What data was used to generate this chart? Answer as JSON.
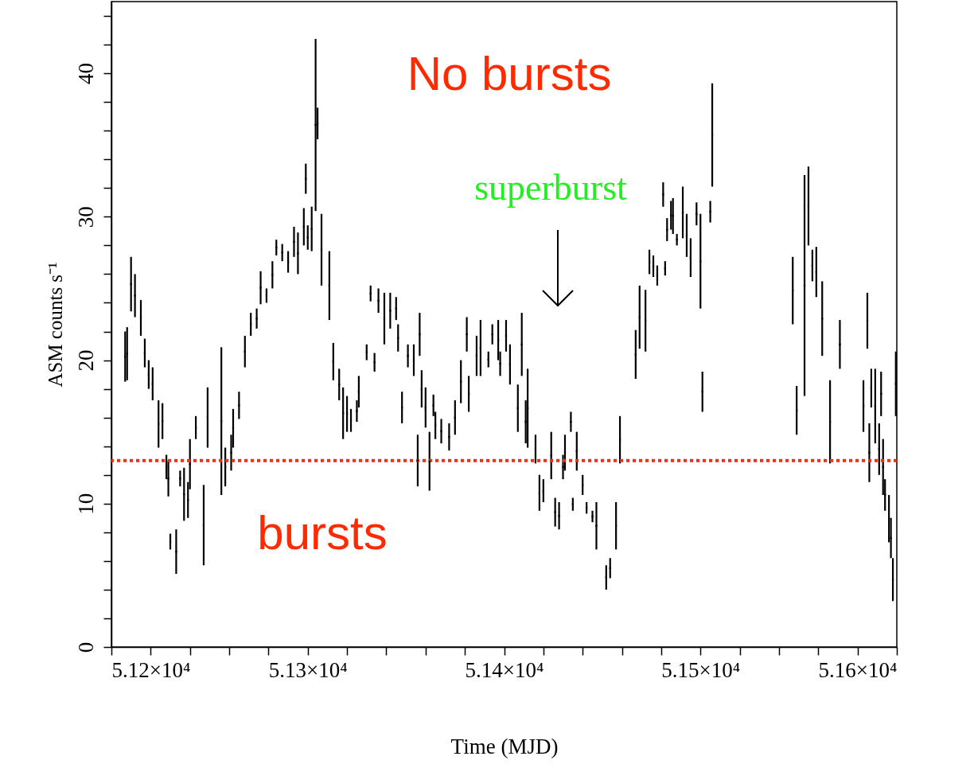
{
  "chart_data": {
    "type": "scatter",
    "xlabel": "Time (MJD)",
    "ylabel": "ASM counts s⁻¹",
    "grid": false,
    "xlim": [
      51200,
      51600
    ],
    "ylim": [
      0,
      45
    ],
    "xticks": [
      {
        "value": 51200,
        "label": "5.12×10⁴"
      },
      {
        "value": 51220,
        "label": null
      },
      {
        "value": 51240,
        "label": null
      },
      {
        "value": 51260,
        "label": null
      },
      {
        "value": 51280,
        "label": null
      },
      {
        "value": 51300,
        "label": "5.13×10⁴"
      },
      {
        "value": 51320,
        "label": null
      },
      {
        "value": 51340,
        "label": null
      },
      {
        "value": 51360,
        "label": null
      },
      {
        "value": 51380,
        "label": null
      },
      {
        "value": 51400,
        "label": "5.14×10⁴"
      },
      {
        "value": 51420,
        "label": null
      },
      {
        "value": 51440,
        "label": null
      },
      {
        "value": 51460,
        "label": null
      },
      {
        "value": 51480,
        "label": null
      },
      {
        "value": 51500,
        "label": "5.15×10⁴"
      },
      {
        "value": 51520,
        "label": null
      },
      {
        "value": 51540,
        "label": null
      },
      {
        "value": 51560,
        "label": null
      },
      {
        "value": 51580,
        "label": null
      },
      {
        "value": 51600,
        "label": "5.16×10⁴"
      }
    ],
    "yticks": [
      0,
      {
        "value": 2,
        "label": null
      },
      {
        "value": 4,
        "label": null
      },
      {
        "value": 6,
        "label": null
      },
      {
        "value": 8,
        "label": null
      },
      10,
      {
        "value": 12,
        "label": null
      },
      {
        "value": 14,
        "label": null
      },
      {
        "value": 16,
        "label": null
      },
      {
        "value": 18,
        "label": null
      },
      20,
      {
        "value": 22,
        "label": null
      },
      {
        "value": 24,
        "label": null
      },
      {
        "value": 26,
        "label": null
      },
      {
        "value": 28,
        "label": null
      },
      30,
      {
        "value": 32,
        "label": null
      },
      {
        "value": 34,
        "label": null
      },
      {
        "value": 36,
        "label": null
      },
      {
        "value": 38,
        "label": null
      },
      40,
      {
        "value": 42,
        "label": null
      },
      {
        "value": 44,
        "label": null
      }
    ],
    "ref_lines": [
      {
        "axis": "y",
        "value": 13,
        "color": "#ff2a00",
        "line_style": "dotted"
      }
    ],
    "annotations": [
      "No bursts",
      "bursts",
      "superburst"
    ],
    "series": [
      {
        "color": "#000000",
        "x": [
          51207,
          51208,
          51210,
          51212,
          51215,
          51217,
          51219,
          51221,
          51224,
          51226,
          51228,
          51229,
          51230,
          51233,
          51235,
          51237,
          51239,
          51240,
          51243,
          51247,
          51249,
          51256,
          51258,
          51261,
          51262,
          51265,
          51268,
          51271,
          51274,
          51276,
          51279,
          51282,
          51284,
          51287,
          51290,
          51293,
          51295,
          51298,
          51299,
          51300,
          51302,
          51304,
          51305,
          51307,
          51311,
          51313,
          51316,
          51318,
          51320,
          51322,
          51325,
          51326,
          51330,
          51332,
          51334,
          51336,
          51339,
          51342,
          51345,
          51346,
          51348,
          51351,
          51354,
          51356,
          51357,
          51358,
          51360,
          51362,
          51364,
          51365,
          51368,
          51372,
          51375,
          51378,
          51381,
          51382,
          51386,
          51388,
          51392,
          51394,
          51397,
          51398,
          51401,
          51403,
          51407,
          51409,
          51411,
          51412,
          51416,
          51418,
          51420,
          51424,
          51426,
          51428,
          51430,
          51431,
          51434,
          51435,
          51437,
          51440,
          51442,
          51445,
          51447,
          51452,
          51454,
          51457,
          51459,
          51467,
          51469,
          51472,
          51474,
          51476,
          51478,
          51481,
          51482,
          51483,
          51485,
          51486,
          51488,
          51491,
          51493,
          51495,
          51498,
          51500,
          51501,
          51505,
          51506,
          51547,
          51549,
          51553,
          51555,
          51557,
          51559,
          51562,
          51566,
          51571,
          51583,
          51585,
          51586,
          51587,
          51589,
          51591,
          51592,
          51593,
          51594,
          51596,
          51597,
          51598,
          51599.5
        ],
        "values": [
          20.25,
          20.45,
          25.3,
          24.5,
          22.95,
          20.5,
          19,
          18.35,
          15.55,
          15.75,
          12.55,
          11.75,
          7.35,
          6.65,
          11.75,
          10.65,
          10.25,
          12.75,
          15.3,
          8.5,
          16,
          15.75,
          12.55,
          13.55,
          15.25,
          16.85,
          20.6,
          22.5,
          22.9,
          25.05,
          24.5,
          25.95,
          27.85,
          27.5,
          26.85,
          28.25,
          27.45,
          29.3,
          32.65,
          28.55,
          29.15,
          36.4,
          36.5,
          27.7,
          25.2,
          19.9,
          18.3,
          16.3,
          16.25,
          15.8,
          16.45,
          17.8,
          20.55,
          24.65,
          19.85,
          24.15,
          22.9,
          23.45,
          23.6,
          21.55,
          16.7,
          20.3,
          20,
          13,
          21.8,
          18,
          16.7,
          12.95,
          16.85,
          15.45,
          15.05,
          14.65,
          16,
          18.5,
          21.8,
          17.65,
          20.3,
          20.85,
          20.05,
          21.8,
          21.4,
          19.75,
          21.7,
          19.7,
          16.65,
          21.1,
          15.7,
          16.65,
          13.8,
          10.75,
          10.9,
          13.35,
          9.4,
          9.15,
          12.55,
          13.55,
          15.7,
          9.95,
          13.65,
          11.3,
          9.7,
          9.1,
          8.45,
          4.85,
          5.5,
          8.45,
          14.45,
          20.4,
          23,
          22.75,
          26.85,
          26.55,
          25.9,
          31.55,
          26.4,
          29.1,
          30.1,
          30.05,
          28.4,
          30.3,
          28.7,
          27.15,
          30.2,
          26.9,
          17.8,
          30.35,
          35.7,
          24.85,
          16.5,
          25.2,
          30.75,
          26.6,
          26.15,
          22.9,
          15.7,
          21.1,
          16.8,
          22.75,
          13.55,
          18.05,
          16.8,
          13.8,
          17.65,
          12.55,
          10.6,
          8.95,
          7.6,
          4.7,
          18.35
        ],
        "errors": [
          1.75,
          1.85,
          1.9,
          1.5,
          1.25,
          1,
          1,
          1.15,
          1.65,
          1.25,
          0.85,
          1.25,
          0.55,
          1.55,
          0.55,
          1.85,
          1.25,
          1.75,
          0.8,
          2.8,
          2.1,
          5.15,
          1.35,
          1.25,
          1.35,
          0.95,
          1.1,
          0.8,
          0.7,
          1.15,
          0.5,
          0.95,
          0.55,
          0.6,
          0.75,
          1.05,
          1.45,
          1.3,
          1.05,
          0.85,
          1.55,
          6,
          1.1,
          2.5,
          2.4,
          1.3,
          1.1,
          1.8,
          1.25,
          0.8,
          0.75,
          1.1,
          0.55,
          0.55,
          0.65,
          0.85,
          1.8,
          1.25,
          0.8,
          0.95,
          1.1,
          0.8,
          1.1,
          1.8,
          1.5,
          1.3,
          1.4,
          2.05,
          0.75,
          0.95,
          0.85,
          0.95,
          1.2,
          1.5,
          1.2,
          1.25,
          1.4,
          1.95,
          0.55,
          0.7,
          1.4,
          0.85,
          1.1,
          1.4,
          1.65,
          2.2,
          1.5,
          2.75,
          1,
          1.25,
          0.8,
          1.65,
          1,
          0.95,
          0.85,
          1.25,
          0.7,
          0.45,
          1.35,
          0.7,
          0.4,
          0.4,
          1.65,
          0.85,
          0.7,
          1.65,
          1.65,
          1.7,
          2.2,
          2.15,
          0.85,
          0.75,
          0.7,
          0.85,
          0.5,
          0.8,
          1,
          1.25,
          0.4,
          1.8,
          1.5,
          1.35,
          0.8,
          3.3,
          1.4,
          0.75,
          3.6,
          2.35,
          1.7,
          7.7,
          2.75,
          1.1,
          1.75,
          2.6,
          2.9,
          1.7,
          1.8,
          1.95,
          2.05,
          1.35,
          2.6,
          1.8,
          1.55,
          1.95,
          1.1,
          1.65,
          1.4,
          1.5,
          2.25
        ]
      }
    ]
  }
}
